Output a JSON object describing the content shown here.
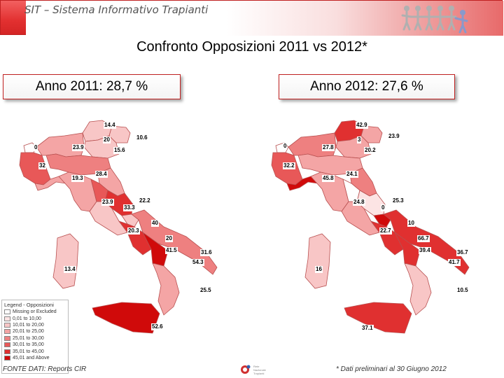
{
  "header": {
    "title": "SIT – Sistema Informativo Trapianti",
    "logo_icon": "people-chain-logo"
  },
  "slide": {
    "title": "Confronto Opposizioni 2011 vs 2012*"
  },
  "panels": [
    {
      "label": "Anno 2011: 28,7 %",
      "values": [
        "14.4",
        "10.6",
        "20",
        "23.9",
        "15.6",
        "0",
        "32",
        "28.4",
        "19.3",
        "23.9",
        "22.2",
        "33.3",
        "40",
        "20.3",
        "20",
        "41.5",
        "31.6",
        "54.3",
        "13.4",
        "25.5",
        "52.6"
      ]
    },
    {
      "label": "Anno 2012: 27,6 %",
      "values": [
        "42.9",
        "23.9",
        "3",
        "27.8",
        "20.2",
        "0",
        "32.2",
        "24.1",
        "45.8",
        "24.8",
        "25.3",
        "0",
        "10",
        "22.7",
        "66.7",
        "39.4",
        "36.7",
        "41.7",
        "16",
        "10.5",
        "37.1"
      ]
    }
  ],
  "legend": {
    "title": "Legend - Opposizioni",
    "items": [
      {
        "label": "Missing or Excluded",
        "color": "#ffffff"
      },
      {
        "label": "0,01 to 10,00",
        "color": "#fce4e4"
      },
      {
        "label": "10,01 to 20,00",
        "color": "#f8c6c6"
      },
      {
        "label": "20,01 to 25,00",
        "color": "#f4a5a5"
      },
      {
        "label": "25,01 to 30,00",
        "color": "#ee8080"
      },
      {
        "label": "30,01 to 35,00",
        "color": "#e85858"
      },
      {
        "label": "35,01 to 45,00",
        "color": "#e03030"
      },
      {
        "label": "45,01 and Above",
        "color": "#d00a0a"
      }
    ]
  },
  "footer": {
    "source": "FONTE DATI: Reports CIR",
    "note": "* Dati preliminari al 30 Giugno 2012",
    "logo_icon": "rete-trapianti-logo",
    "logo_text": [
      "Rete",
      "Nazionale",
      "Trapianti"
    ]
  }
}
